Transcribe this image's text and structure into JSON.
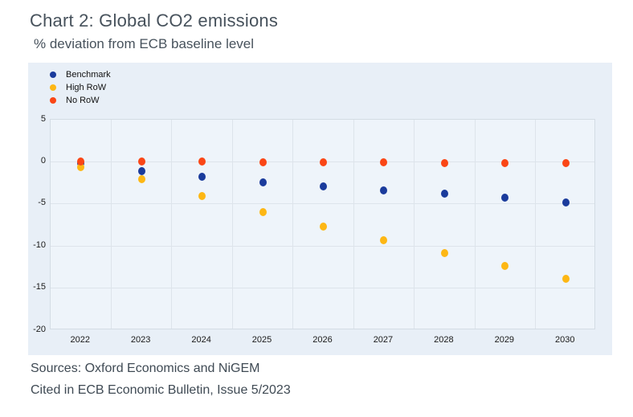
{
  "header": {
    "title": "Chart 2: Global CO2 emissions",
    "subtitle": "% deviation from ECB baseline level"
  },
  "footer": {
    "source": "Sources: Oxford Economics and NiGEM",
    "citation": "Cited in ECB Economic Bulletin, Issue 5/2023"
  },
  "chart_data": {
    "type": "scatter",
    "title": "Chart 2: Global CO2 emissions",
    "subtitle": "% deviation from ECB baseline level",
    "categories": [
      "2022",
      "2023",
      "2024",
      "2025",
      "2026",
      "2027",
      "2028",
      "2029",
      "2030"
    ],
    "series": [
      {
        "name": "Benchmark",
        "color": "#1a3b9c",
        "values": [
          -0.2,
          -1.1,
          -1.8,
          -2.4,
          -2.9,
          -3.4,
          -3.8,
          -4.3,
          -4.8
        ]
      },
      {
        "name": "High RoW",
        "color": "#fdb714",
        "values": [
          -0.6,
          -2.1,
          -4.1,
          -6.0,
          -7.7,
          -9.3,
          -10.8,
          -12.4,
          -13.9
        ]
      },
      {
        "name": "No RoW",
        "color": "#fa4616",
        "values": [
          0.0,
          0.0,
          0.0,
          -0.1,
          -0.1,
          -0.1,
          -0.2,
          -0.2,
          -0.2
        ]
      }
    ],
    "xlabel": "",
    "ylabel": "",
    "ylim": [
      -20,
      5
    ],
    "yticks": [
      5,
      0,
      -5,
      -10,
      -15,
      -20
    ],
    "grid": true,
    "legend_position": "top-left",
    "panel_bg": "#e8eff7",
    "plot_bg": "#eef4fa",
    "gridline_color": "#dde4eb",
    "axis_text_color": "#1a1a1a"
  }
}
